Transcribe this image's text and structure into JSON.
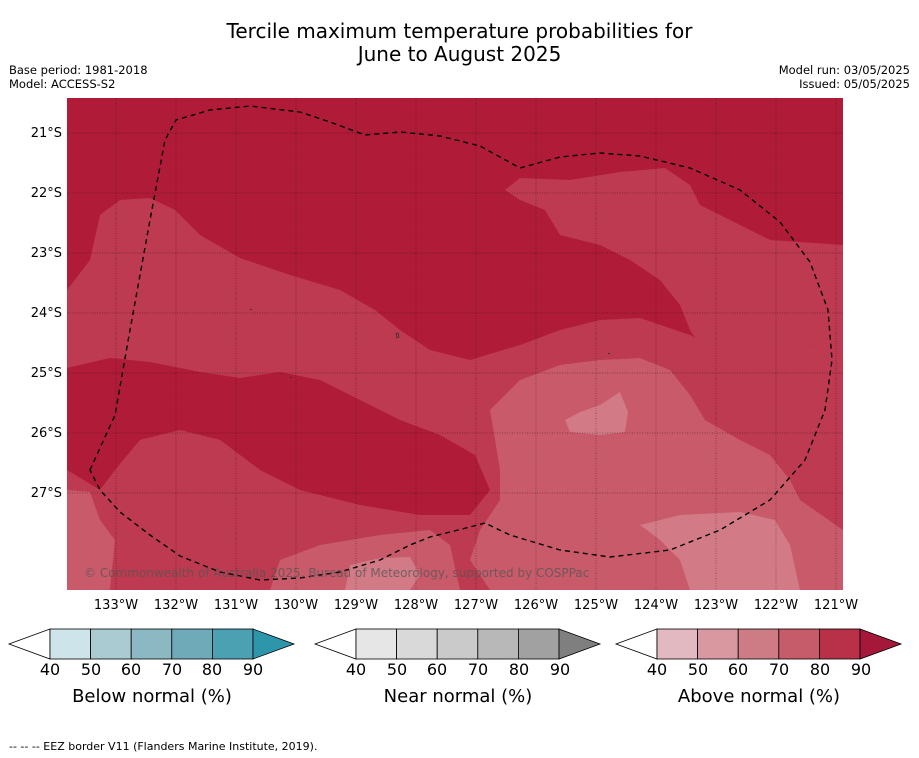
{
  "title_line1": "Tercile maximum temperature probabilities for",
  "title_line2": "June to August 2025",
  "meta_left": [
    "Base period: 1981-2018",
    "Model: ACCESS-S2"
  ],
  "meta_right": [
    "Model run: 03/05/2025",
    "Issued: 05/05/2025"
  ],
  "lon_labels": [
    "133°W",
    "132°W",
    "131°W",
    "130°W",
    "129°W",
    "128°W",
    "127°W",
    "126°W",
    "125°W",
    "124°W",
    "123°W",
    "122°W",
    "121°W"
  ],
  "lat_labels": [
    "21°S",
    "22°S",
    "23°S",
    "24°S",
    "25°S",
    "26°S",
    "27°S"
  ],
  "copyright": "© Commonwealth of Australia 2025, Bureau of Meteorology, supported by COSPPac",
  "colorbars": [
    {
      "title": "Below normal (%)",
      "ticks": [
        "40",
        "50",
        "60",
        "70",
        "80",
        "90"
      ],
      "colors": [
        "#cde4ea",
        "#aacbd2",
        "#8cb8c4",
        "#6faab8",
        "#4ba0b1",
        "#2e96ab"
      ]
    },
    {
      "title": "Near normal (%)",
      "ticks": [
        "40",
        "50",
        "60",
        "70",
        "80",
        "90"
      ],
      "colors": [
        "#e6e6e6",
        "#d9d9d9",
        "#cacaca",
        "#b8b8b8",
        "#a1a1a1",
        "#7f7f7f"
      ]
    },
    {
      "title": "Above normal (%)",
      "ticks": [
        "40",
        "50",
        "60",
        "70",
        "80",
        "90"
      ],
      "colors": [
        "#e2b9c0",
        "#d9979f",
        "#cd7b84",
        "#c65b6a",
        "#b93049",
        "#a5183a"
      ]
    }
  ],
  "footer": "-- -- -- EEZ border V11 (Flanders Marine Institute, 2019).",
  "map_colors": {
    "darkest": "#b01c38",
    "dark": "#b52640",
    "mid": "#bd3a50",
    "light": "#c85a6a",
    "lightest": "#d27b86"
  }
}
